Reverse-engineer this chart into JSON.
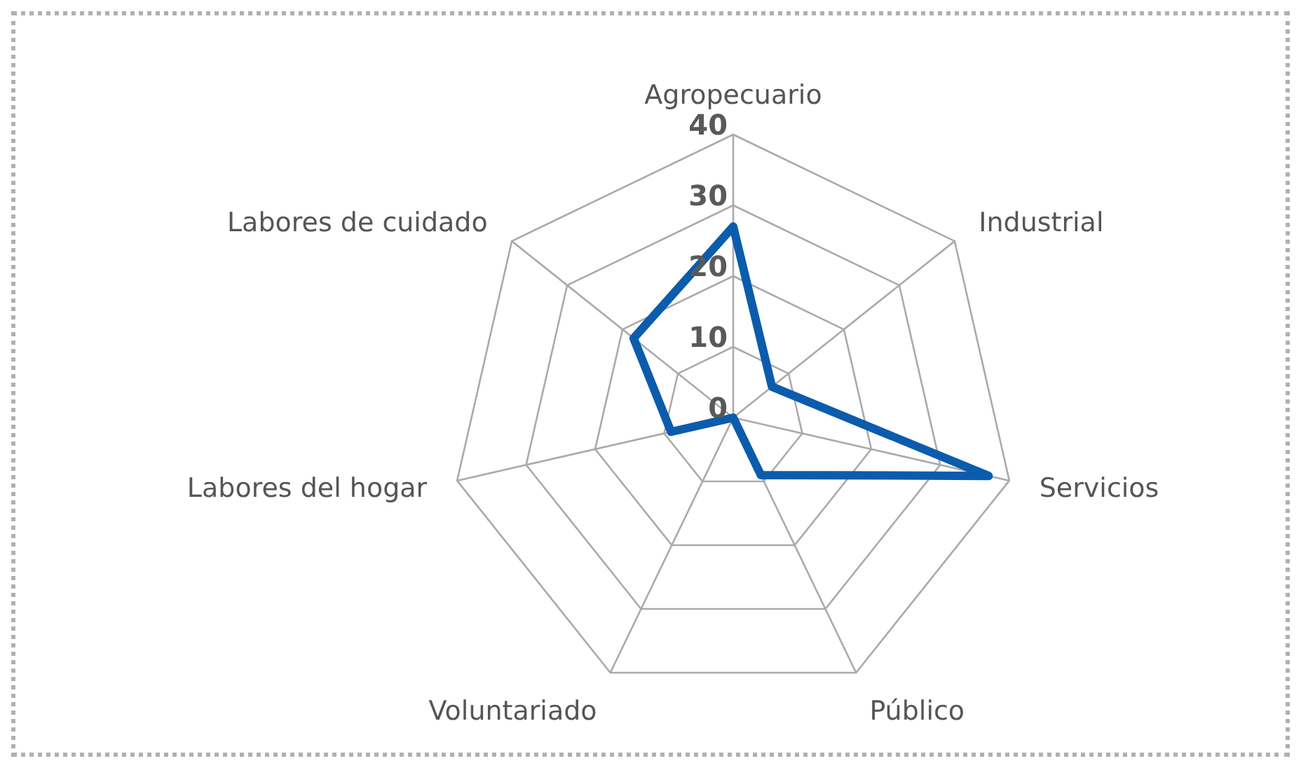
{
  "chart_data": {
    "type": "radar",
    "categories": [
      "Agropecuario",
      "Industrial",
      "Servicios",
      "Público",
      "Voluntariado",
      "Labores del hogar",
      "Labores de cuidado"
    ],
    "series": [
      {
        "color": "#0b5cad",
        "values": [
          27,
          7,
          37,
          9,
          0,
          9,
          18
        ]
      }
    ],
    "ylim": [
      0,
      40
    ],
    "yticks": [
      0,
      10,
      20,
      30,
      40
    ],
    "grid": true,
    "legend": false,
    "marker": "none"
  }
}
